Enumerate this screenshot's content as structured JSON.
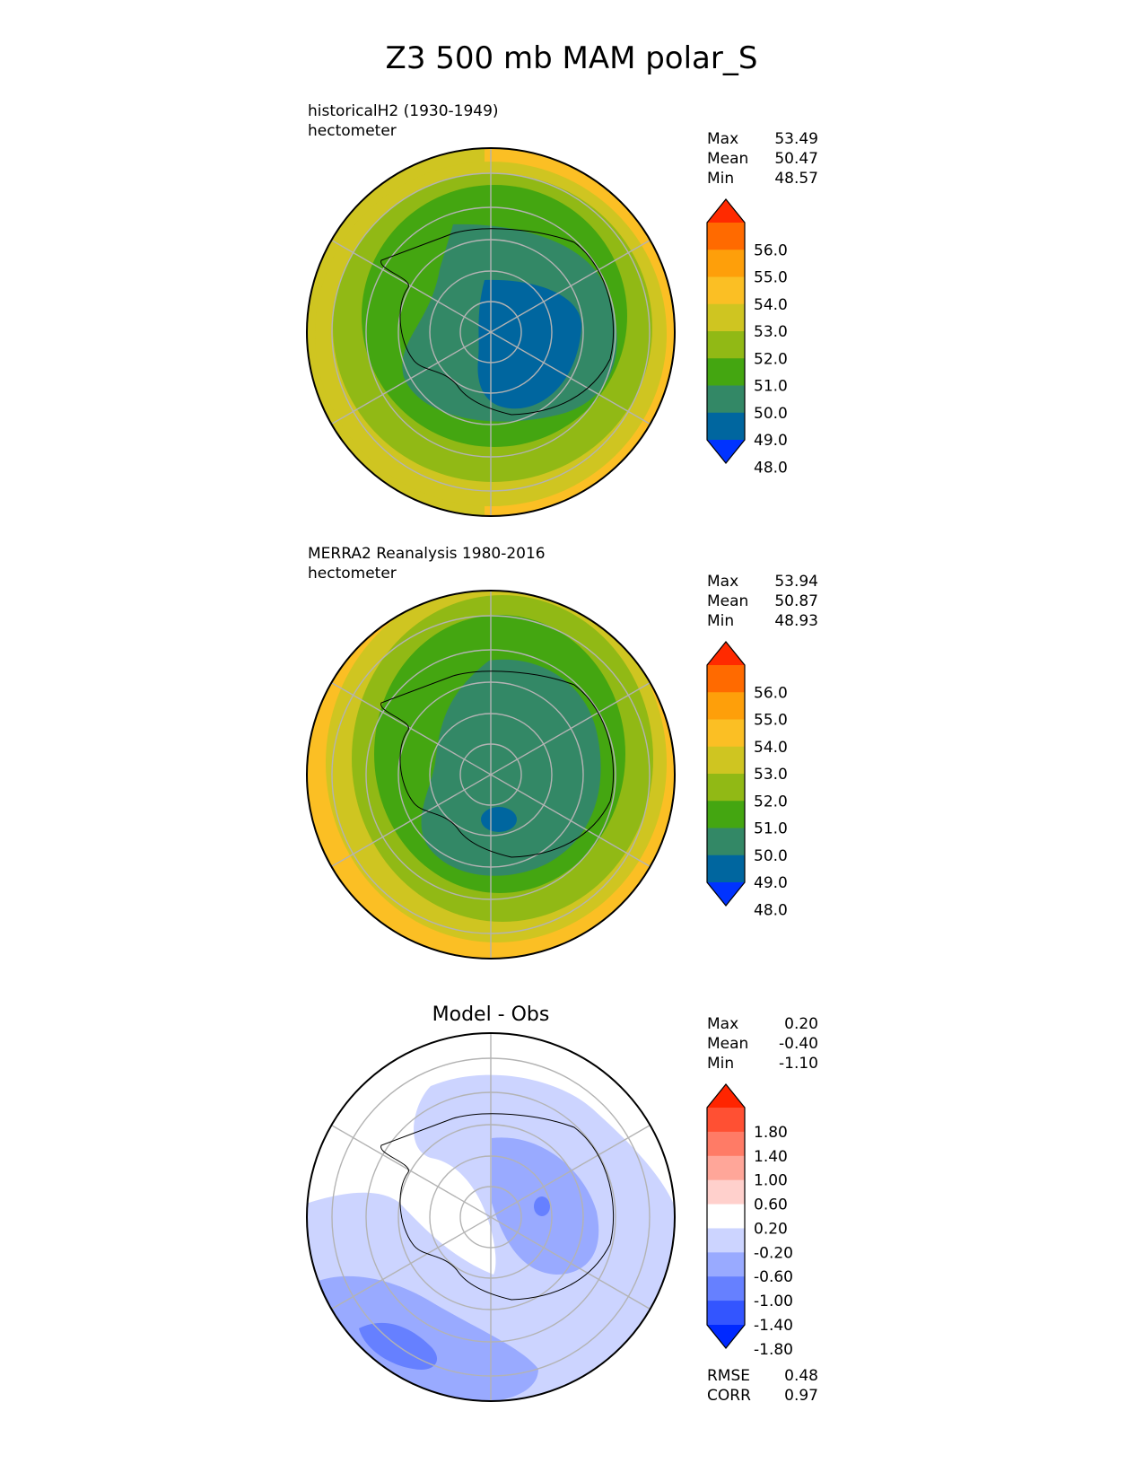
{
  "title": "Z3 500 mb MAM polar_S",
  "colors": {
    "absolute_levels": [
      "#0033ff",
      "#00669f",
      "#338866",
      "#44a611",
      "#91b915",
      "#cfc521",
      "#fbbf24",
      "#fe9f0a",
      "#ff6a00",
      "#ff2a00"
    ],
    "diff_levels": [
      "#0029ff",
      "#3355ff",
      "#6680ff",
      "#99aaff",
      "#ccd4ff",
      "#ffffff",
      "#ffd0cc",
      "#ffa699",
      "#ff7b66",
      "#ff5033",
      "#ff2500"
    ],
    "grid": "#b3b3b3",
    "coast": "#000000"
  },
  "chart_data": [
    {
      "type": "heatmap",
      "projection": "south polar stereographic",
      "title": "historicalH2 (1930-1949)",
      "units": "hectometer",
      "stats": {
        "max_label": "Max",
        "mean_label": "Mean",
        "min_label": "Min",
        "max": "53.49",
        "mean": "50.47",
        "min": "48.57"
      },
      "colorbar": {
        "ticks": [
          "56.0",
          "55.0",
          "54.0",
          "53.0",
          "52.0",
          "51.0",
          "50.0",
          "49.0",
          "48.0"
        ],
        "levels": [
          48,
          49,
          50,
          51,
          52,
          53,
          54,
          55,
          56
        ],
        "extend": "both"
      },
      "field_levels_from_pole": [
        49,
        50,
        51,
        52,
        53
      ]
    },
    {
      "type": "heatmap",
      "projection": "south polar stereographic",
      "title": "MERRA2 Reanalysis 1980-2016",
      "units": "hectometer",
      "stats": {
        "max_label": "Max",
        "mean_label": "Mean",
        "min_label": "Min",
        "max": "53.94",
        "mean": "50.87",
        "min": "48.93"
      },
      "colorbar": {
        "ticks": [
          "56.0",
          "55.0",
          "54.0",
          "53.0",
          "52.0",
          "51.0",
          "50.0",
          "49.0",
          "48.0"
        ],
        "levels": [
          48,
          49,
          50,
          51,
          52,
          53,
          54,
          55,
          56
        ],
        "extend": "both"
      },
      "field_levels_from_pole": [
        50,
        51,
        52,
        53
      ]
    },
    {
      "type": "heatmap",
      "projection": "south polar stereographic",
      "title": "Model - Obs",
      "stats": {
        "max_label": "Max",
        "mean_label": "Mean",
        "min_label": "Min",
        "max": "0.20",
        "mean": "-0.40",
        "min": "-1.10"
      },
      "colorbar": {
        "ticks": [
          "1.80",
          "1.40",
          "1.00",
          "0.60",
          "0.20",
          "-0.20",
          "-0.60",
          "-1.00",
          "-1.40",
          "-1.80"
        ],
        "levels": [
          -1.8,
          -1.4,
          -1.0,
          -0.6,
          -0.2,
          0.2,
          0.6,
          1.0,
          1.4,
          1.8
        ],
        "extend": "both"
      },
      "metrics": {
        "rmse_label": "RMSE",
        "corr_label": "CORR",
        "rmse": "0.48",
        "corr": "0.97"
      }
    }
  ]
}
